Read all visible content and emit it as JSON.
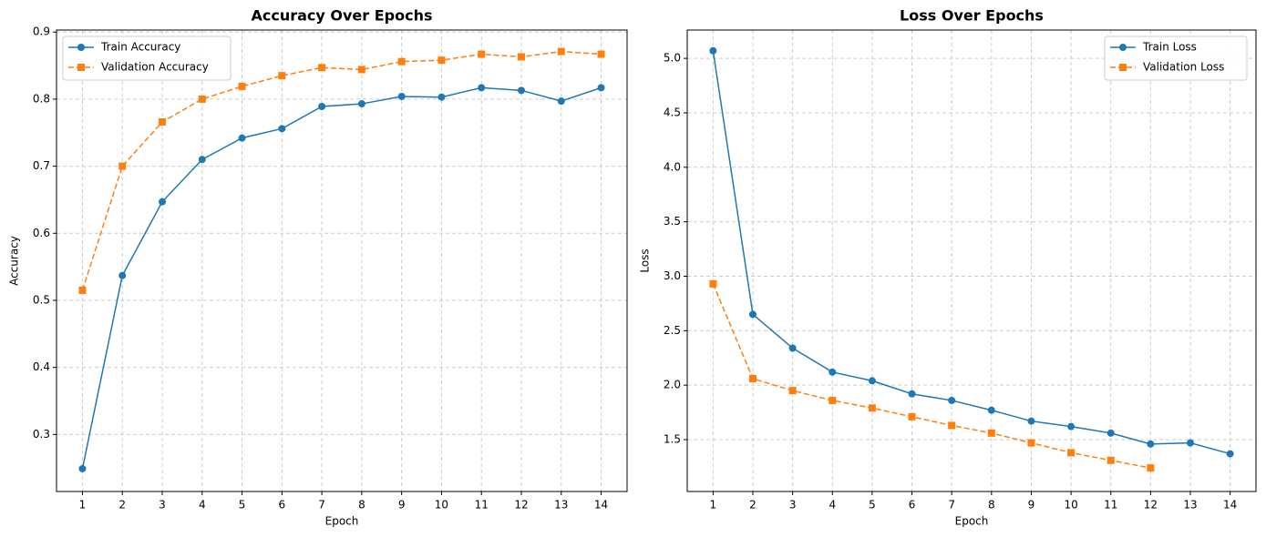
{
  "chart_data": [
    {
      "type": "line",
      "title": "Accuracy Over Epochs",
      "xlabel": "Epoch",
      "ylabel": "Accuracy",
      "x": [
        1,
        2,
        3,
        4,
        5,
        6,
        7,
        8,
        9,
        10,
        11,
        12,
        13,
        14
      ],
      "series": [
        {
          "name": "Train Accuracy",
          "color": "#1f77b4",
          "marker": "circle",
          "linestyle": "solid",
          "values": [
            0.249,
            0.537,
            0.647,
            0.71,
            0.742,
            0.756,
            0.789,
            0.793,
            0.804,
            0.803,
            0.817,
            0.813,
            0.797,
            0.817
          ]
        },
        {
          "name": "Validation Accuracy",
          "color": "#ff7f0e",
          "marker": "square",
          "linestyle": "dashed",
          "values": [
            0.515,
            0.7,
            0.766,
            0.8,
            0.819,
            0.835,
            0.847,
            0.844,
            0.856,
            0.858,
            0.867,
            0.863,
            0.871,
            0.867
          ]
        }
      ],
      "xlim": [
        0.35,
        14.65
      ],
      "xticks": [
        1,
        2,
        3,
        4,
        5,
        6,
        7,
        8,
        9,
        10,
        11,
        12,
        13,
        14
      ],
      "ylim": [
        0.215,
        0.903
      ],
      "yticks": [
        0.3,
        0.4,
        0.5,
        0.6,
        0.7,
        0.8,
        0.9
      ],
      "grid": true,
      "legend": "upper-left"
    },
    {
      "type": "line",
      "title": "Loss Over Epochs",
      "xlabel": "Epoch",
      "ylabel": "Loss",
      "x": [
        1,
        2,
        3,
        4,
        5,
        6,
        7,
        8,
        9,
        10,
        11,
        12,
        13,
        14
      ],
      "series": [
        {
          "name": "Train Loss",
          "color": "#1f77b4",
          "marker": "circle",
          "linestyle": "solid",
          "values": [
            5.07,
            2.65,
            2.34,
            2.12,
            2.04,
            1.92,
            1.86,
            1.77,
            1.67,
            1.62,
            1.56,
            1.46,
            1.47,
            1.37
          ]
        },
        {
          "name": "Validation Loss",
          "color": "#ff7f0e",
          "marker": "square",
          "linestyle": "dashed",
          "values": [
            2.93,
            2.06,
            1.95,
            1.86,
            1.79,
            1.71,
            1.63,
            1.56,
            1.47,
            1.38,
            1.31,
            1.24,
            null,
            null
          ]
        }
      ],
      "xlim": [
        0.35,
        14.65
      ],
      "xticks": [
        1,
        2,
        3,
        4,
        5,
        6,
        7,
        8,
        9,
        10,
        11,
        12,
        13,
        14
      ],
      "ylim": [
        1.024,
        5.26
      ],
      "yticks": [
        1.5,
        {
          "value": 2,
          "label": "2.0"
        },
        2.5,
        {
          "value": 3,
          "label": "3.0"
        },
        3.5,
        {
          "value": 4,
          "label": "4.0"
        },
        4.5,
        {
          "value": 5,
          "label": "5.0"
        }
      ],
      "grid": true,
      "legend": "upper-right"
    }
  ]
}
